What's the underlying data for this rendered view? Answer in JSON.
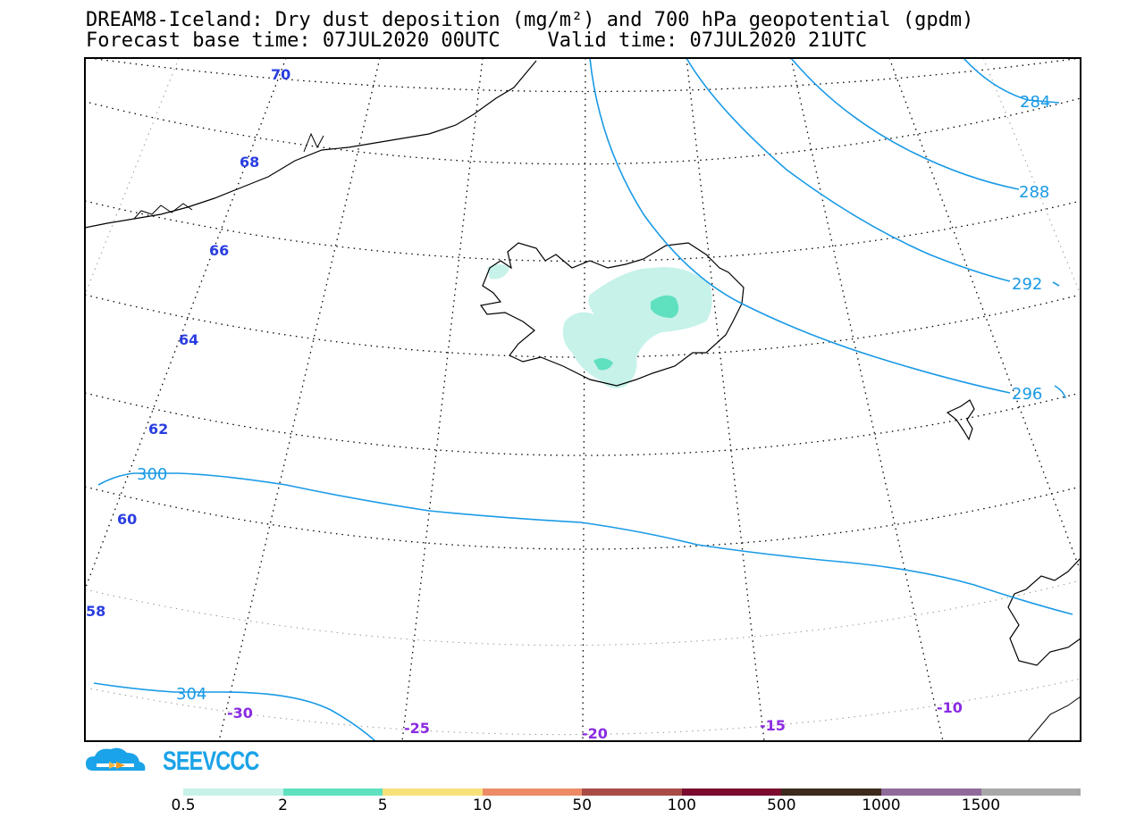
{
  "title": {
    "line1": "DREAM8-Iceland: Dry dust deposition (mg/m²) and 700 hPa geopotential (gpdm)",
    "line2": "Forecast base time: 07JUL2020 00UTC    Valid time: 07JUL2020 21UTC"
  },
  "logo": {
    "text": "SEEVCCC",
    "icon": "cloud-logo-icon"
  },
  "lat_labels": [
    "70",
    "68",
    "66",
    "64",
    "62",
    "60",
    "58"
  ],
  "lon_labels": [
    "-30",
    "-25",
    "-20",
    "-15",
    "-10"
  ],
  "geopotential_labels": [
    "284",
    "288",
    "292",
    "296",
    "300",
    "304"
  ],
  "colorbar": {
    "labels": [
      "0.5",
      "2",
      "5",
      "10",
      "50",
      "100",
      "500",
      "1000",
      "1500"
    ],
    "colors": [
      "#c6f2ea",
      "#5fe0bf",
      "#f7e27a",
      "#ed8b66",
      "#a84c45",
      "#7a0b2e",
      "#3b2a1d",
      "#8f6a9b",
      "#a8a8a8"
    ]
  },
  "colors": {
    "geopotential": "#1a9ae6",
    "latitude_label": "#2a3ee0",
    "longitude_label": "#8a2be2"
  }
}
